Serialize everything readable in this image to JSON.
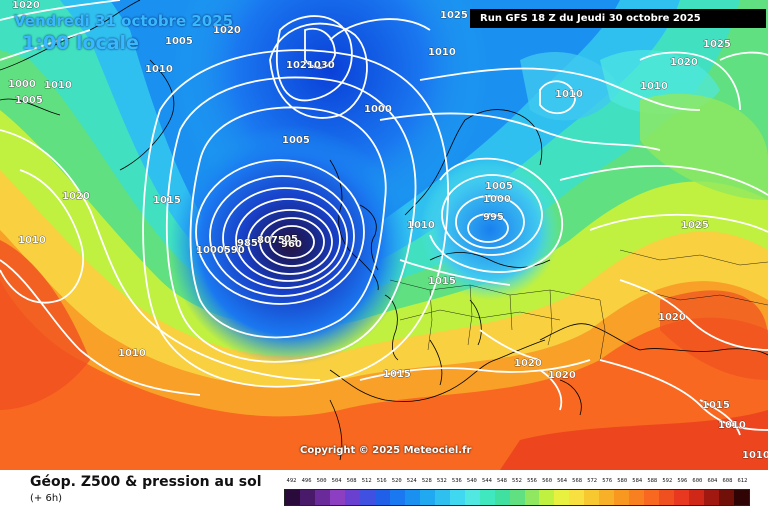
{
  "header": {
    "valid_date": "Vendredi 31 octobre 2025",
    "local_time": "1:00 locale",
    "run_info": "Run GFS 18 Z du Jeudi 30 octobre 2025"
  },
  "map": {
    "copyright": "Copyright © 2025 Meteociel.fr",
    "pressure_labels": [
      {
        "text": "1020"
      },
      {
        "text": "1005"
      },
      {
        "text": "1010"
      },
      {
        "text": "1000"
      },
      {
        "text": "1010"
      },
      {
        "text": "1005"
      },
      {
        "text": "1020"
      },
      {
        "text": "1015"
      },
      {
        "text": "1010"
      },
      {
        "text": "1010"
      },
      {
        "text": "1025"
      },
      {
        "text": "1020"
      },
      {
        "text": "1021030"
      },
      {
        "text": "1000"
      },
      {
        "text": "1005"
      },
      {
        "text": "1000590"
      },
      {
        "text": "985"
      },
      {
        "text": "8075"
      },
      {
        "text": "05"
      },
      {
        "text": "960"
      },
      {
        "text": "1005"
      },
      {
        "text": "1000"
      },
      {
        "text": "995"
      },
      {
        "text": "1010"
      },
      {
        "text": "1015"
      },
      {
        "text": "1010"
      },
      {
        "text": "1025"
      },
      {
        "text": "1020"
      },
      {
        "text": "1010"
      },
      {
        "text": "1010"
      },
      {
        "text": "1025"
      },
      {
        "text": "1020"
      },
      {
        "text": "1020"
      },
      {
        "text": "1020"
      },
      {
        "text": "1015"
      },
      {
        "text": "1015"
      },
      {
        "text": "1010"
      },
      {
        "text": "1010"
      }
    ]
  },
  "legend": {
    "title": "Géop. Z500 & pression au sol",
    "step": "(+ 6h)",
    "scale_values": [
      "492",
      "496",
      "500",
      "504",
      "508",
      "512",
      "516",
      "520",
      "524",
      "528",
      "532",
      "536",
      "540",
      "544",
      "548",
      "552",
      "556",
      "560",
      "564",
      "568",
      "572",
      "576",
      "580",
      "584",
      "588",
      "592",
      "596",
      "600",
      "604",
      "608",
      "612"
    ],
    "scale_colors": [
      "#2a0a3a",
      "#4a1a6a",
      "#6a2a9a",
      "#8c3fc0",
      "#6a40d0",
      "#4050e0",
      "#2060e8",
      "#1a78f0",
      "#1a90f0",
      "#20a8f0",
      "#30c0f0",
      "#40d8f0",
      "#50e8e0",
      "#40e8c0",
      "#40e0a0",
      "#60e080",
      "#90e860",
      "#c0f040",
      "#e8f040",
      "#f8e040",
      "#f8c830",
      "#f8b028",
      "#f89820",
      "#f88020",
      "#f86820",
      "#f05020",
      "#e83820",
      "#d02818",
      "#a01810",
      "#701008",
      "#300404"
    ]
  }
}
